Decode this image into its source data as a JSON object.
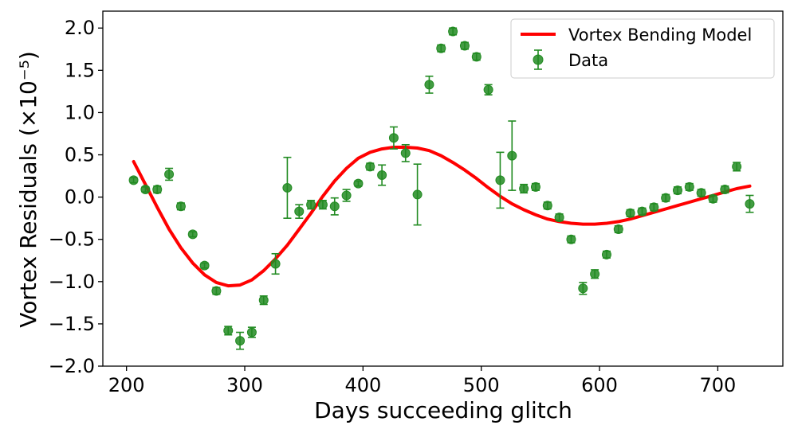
{
  "chart_data": {
    "type": "scatter",
    "xlabel": "Days succeeding glitch",
    "ylabel": "Vortex Residuals (×10⁻⁵)",
    "xlim": [
      180,
      755
    ],
    "ylim": [
      -2.0,
      2.2
    ],
    "xticks": [
      200,
      300,
      400,
      500,
      600,
      700
    ],
    "yticks": [
      -2.0,
      -1.5,
      -1.0,
      -0.5,
      0.0,
      0.5,
      1.0,
      1.5,
      2.0
    ],
    "xtick_labels": [
      "200",
      "300",
      "400",
      "500",
      "600",
      "700"
    ],
    "ytick_labels": [
      "−2.0",
      "−1.5",
      "−1.0",
      "−0.5",
      "0.0",
      "0.5",
      "1.0",
      "1.5",
      "2.0"
    ],
    "grid": false,
    "legend_position": "top-right",
    "series": [
      {
        "name": "Vortex Bending Model",
        "kind": "line",
        "color": "#ff0000",
        "x": [
          206,
          216,
          226,
          236,
          246,
          256,
          266,
          276,
          286,
          296,
          306,
          316,
          326,
          336,
          346,
          356,
          366,
          376,
          386,
          396,
          406,
          416,
          426,
          436,
          446,
          456,
          466,
          476,
          486,
          496,
          506,
          516,
          526,
          536,
          546,
          556,
          566,
          576,
          586,
          596,
          606,
          616,
          626,
          636,
          646,
          656,
          666,
          676,
          686,
          696,
          706,
          716,
          727
        ],
        "y": [
          0.42,
          0.15,
          -0.12,
          -0.38,
          -0.6,
          -0.78,
          -0.92,
          -1.01,
          -1.05,
          -1.04,
          -0.98,
          -0.87,
          -0.73,
          -0.57,
          -0.38,
          -0.19,
          0.01,
          0.19,
          0.34,
          0.46,
          0.53,
          0.57,
          0.59,
          0.59,
          0.58,
          0.55,
          0.49,
          0.41,
          0.32,
          0.22,
          0.11,
          0.01,
          -0.08,
          -0.15,
          -0.21,
          -0.26,
          -0.29,
          -0.31,
          -0.32,
          -0.32,
          -0.31,
          -0.29,
          -0.26,
          -0.22,
          -0.18,
          -0.14,
          -0.1,
          -0.06,
          -0.02,
          0.02,
          0.06,
          0.1,
          0.13
        ]
      },
      {
        "name": "Data",
        "kind": "errorbar",
        "color": "#228b22",
        "x": [
          206,
          216,
          226,
          236,
          246,
          256,
          266,
          276,
          286,
          296,
          306,
          316,
          326,
          336,
          346,
          356,
          366,
          376,
          386,
          396,
          406,
          416,
          426,
          436,
          446,
          456,
          466,
          476,
          486,
          496,
          506,
          516,
          526,
          536,
          546,
          556,
          566,
          576,
          586,
          596,
          606,
          616,
          626,
          636,
          646,
          656,
          666,
          676,
          686,
          696,
          706,
          716,
          727
        ],
        "y": [
          0.2,
          0.09,
          0.09,
          0.27,
          -0.11,
          -0.44,
          -0.81,
          -1.11,
          -1.58,
          -1.7,
          -1.6,
          -1.22,
          -0.79,
          0.11,
          -0.17,
          -0.09,
          -0.09,
          -0.11,
          0.02,
          0.16,
          0.36,
          0.26,
          0.7,
          0.52,
          0.03,
          1.33,
          1.76,
          1.96,
          1.79,
          1.66,
          1.27,
          0.2,
          0.49,
          0.1,
          0.12,
          -0.1,
          -0.24,
          -0.5,
          -1.08,
          -0.91,
          -0.68,
          -0.38,
          -0.19,
          -0.17,
          -0.12,
          -0.01,
          0.08,
          0.12,
          0.05,
          -0.02,
          0.09,
          0.36,
          -0.08
        ],
        "yerr": [
          0.03,
          0.03,
          0.04,
          0.07,
          0.04,
          0.03,
          0.03,
          0.04,
          0.05,
          0.1,
          0.06,
          0.05,
          0.12,
          0.36,
          0.08,
          0.05,
          0.05,
          0.1,
          0.07,
          0.03,
          0.04,
          0.12,
          0.13,
          0.1,
          0.36,
          0.1,
          0.04,
          0.04,
          0.04,
          0.04,
          0.06,
          0.33,
          0.41,
          0.05,
          0.04,
          0.04,
          0.04,
          0.04,
          0.07,
          0.05,
          0.04,
          0.04,
          0.04,
          0.04,
          0.04,
          0.04,
          0.04,
          0.04,
          0.04,
          0.04,
          0.04,
          0.05,
          0.1
        ]
      }
    ]
  }
}
